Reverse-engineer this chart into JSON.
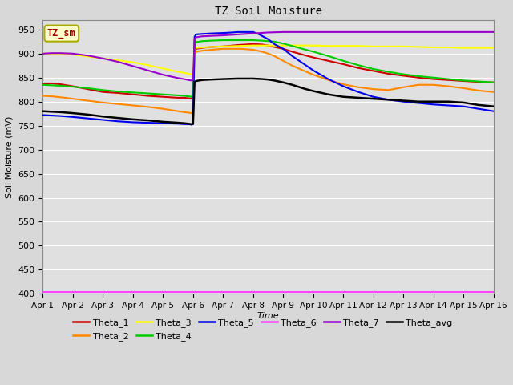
{
  "title": "TZ Soil Moisture",
  "xlabel": "Time",
  "ylabel": "Soil Moisture (mV)",
  "xlim": [
    0,
    15
  ],
  "ylim": [
    400,
    970
  ],
  "yticks": [
    400,
    450,
    500,
    550,
    600,
    650,
    700,
    750,
    800,
    850,
    900,
    950
  ],
  "xtick_labels": [
    "Apr 1",
    "Apr 2",
    "Apr 3",
    "Apr 4",
    "Apr 5",
    "Apr 6",
    "Apr 7",
    "Apr 8",
    "Apr 9",
    "Apr 10",
    "Apr 11",
    "Apr 12",
    "Apr 13",
    "Apr 14",
    "Apr 15",
    "Apr 16"
  ],
  "background_color": "#d8d8d8",
  "plot_bg_color": "#e0e0e0",
  "grid_color": "#ffffff",
  "annotation_text": "TZ_sm",
  "annotation_bg": "#ffffcc",
  "annotation_border": "#aaaa00",
  "annotation_color": "#990000",
  "legend_order": [
    "Theta_1",
    "Theta_2",
    "Theta_3",
    "Theta_4",
    "Theta_5",
    "Theta_6",
    "Theta_7",
    "Theta_avg"
  ],
  "series": {
    "Theta_1": {
      "color": "#cc0000",
      "linewidth": 1.5,
      "points": [
        [
          0,
          838
        ],
        [
          0.3,
          838
        ],
        [
          0.6,
          836
        ],
        [
          1,
          832
        ],
        [
          1.5,
          826
        ],
        [
          2,
          820
        ],
        [
          2.5,
          818
        ],
        [
          3,
          815
        ],
        [
          3.5,
          812
        ],
        [
          4,
          810
        ],
        [
          4.5,
          808
        ],
        [
          4.7,
          808
        ],
        [
          4.85,
          807
        ],
        [
          4.95,
          806
        ],
        [
          5.0,
          808
        ],
        [
          5.05,
          905
        ],
        [
          5.1,
          910
        ],
        [
          5.3,
          912
        ],
        [
          5.6,
          914
        ],
        [
          6.0,
          915
        ],
        [
          6.5,
          918
        ],
        [
          7.0,
          920
        ],
        [
          7.3,
          919
        ],
        [
          7.5,
          917
        ],
        [
          7.7,
          914
        ],
        [
          8.0,
          910
        ],
        [
          8.3,
          904
        ],
        [
          8.7,
          897
        ],
        [
          9.0,
          892
        ],
        [
          9.5,
          885
        ],
        [
          10.0,
          878
        ],
        [
          10.5,
          870
        ],
        [
          11.0,
          864
        ],
        [
          11.5,
          858
        ],
        [
          12.0,
          854
        ],
        [
          12.5,
          850
        ],
        [
          13.0,
          847
        ],
        [
          13.5,
          845
        ],
        [
          14.0,
          843
        ],
        [
          14.5,
          841
        ],
        [
          15.0,
          840
        ]
      ]
    },
    "Theta_2": {
      "color": "#ff8800",
      "linewidth": 1.5,
      "points": [
        [
          0,
          812
        ],
        [
          0.3,
          811
        ],
        [
          0.6,
          809
        ],
        [
          1,
          806
        ],
        [
          1.5,
          802
        ],
        [
          2,
          798
        ],
        [
          2.5,
          795
        ],
        [
          3,
          792
        ],
        [
          3.5,
          789
        ],
        [
          4,
          785
        ],
        [
          4.5,
          780
        ],
        [
          4.7,
          778
        ],
        [
          4.85,
          777
        ],
        [
          4.95,
          776
        ],
        [
          5.0,
          777
        ],
        [
          5.05,
          900
        ],
        [
          5.1,
          904
        ],
        [
          5.3,
          906
        ],
        [
          5.6,
          908
        ],
        [
          6.0,
          910
        ],
        [
          6.3,
          910
        ],
        [
          6.6,
          910
        ],
        [
          7.0,
          908
        ],
        [
          7.3,
          904
        ],
        [
          7.5,
          900
        ],
        [
          7.7,
          895
        ],
        [
          8.0,
          885
        ],
        [
          8.3,
          875
        ],
        [
          8.7,
          864
        ],
        [
          9.0,
          856
        ],
        [
          9.5,
          845
        ],
        [
          10.0,
          836
        ],
        [
          10.5,
          830
        ],
        [
          11.0,
          826
        ],
        [
          11.5,
          824
        ],
        [
          12.0,
          830
        ],
        [
          12.5,
          835
        ],
        [
          13.0,
          835
        ],
        [
          13.5,
          832
        ],
        [
          14.0,
          828
        ],
        [
          14.5,
          823
        ],
        [
          15.0,
          820
        ]
      ]
    },
    "Theta_3": {
      "color": "#ffff00",
      "linewidth": 1.5,
      "points": [
        [
          0,
          900
        ],
        [
          0.3,
          900
        ],
        [
          0.6,
          900
        ],
        [
          1,
          898
        ],
        [
          1.5,
          894
        ],
        [
          2,
          890
        ],
        [
          2.5,
          886
        ],
        [
          3,
          882
        ],
        [
          3.5,
          876
        ],
        [
          4,
          869
        ],
        [
          4.5,
          862
        ],
        [
          4.7,
          860
        ],
        [
          4.85,
          858
        ],
        [
          4.95,
          857
        ],
        [
          5.0,
          858
        ],
        [
          5.05,
          908
        ],
        [
          5.1,
          912
        ],
        [
          5.3,
          913
        ],
        [
          5.6,
          914
        ],
        [
          6.0,
          915
        ],
        [
          6.5,
          916
        ],
        [
          7.0,
          917
        ],
        [
          7.5,
          917
        ],
        [
          8.0,
          917
        ],
        [
          8.5,
          917
        ],
        [
          9.0,
          917
        ],
        [
          9.5,
          916
        ],
        [
          10.0,
          916
        ],
        [
          10.5,
          916
        ],
        [
          11.0,
          915
        ],
        [
          11.5,
          915
        ],
        [
          12.0,
          915
        ],
        [
          12.5,
          914
        ],
        [
          13.0,
          913
        ],
        [
          13.5,
          913
        ],
        [
          14.0,
          912
        ],
        [
          14.5,
          912
        ],
        [
          15.0,
          912
        ]
      ]
    },
    "Theta_4": {
      "color": "#00cc00",
      "linewidth": 1.5,
      "points": [
        [
          0,
          835
        ],
        [
          0.3,
          834
        ],
        [
          0.6,
          833
        ],
        [
          1,
          831
        ],
        [
          1.5,
          828
        ],
        [
          2,
          824
        ],
        [
          2.5,
          821
        ],
        [
          3,
          819
        ],
        [
          3.5,
          817
        ],
        [
          4,
          815
        ],
        [
          4.5,
          813
        ],
        [
          4.7,
          812
        ],
        [
          4.85,
          811
        ],
        [
          4.95,
          810
        ],
        [
          5.0,
          811
        ],
        [
          5.05,
          920
        ],
        [
          5.1,
          924
        ],
        [
          5.3,
          926
        ],
        [
          5.6,
          927
        ],
        [
          6.0,
          928
        ],
        [
          6.5,
          928
        ],
        [
          7.0,
          928
        ],
        [
          7.3,
          927
        ],
        [
          7.5,
          926
        ],
        [
          7.7,
          925
        ],
        [
          8.0,
          921
        ],
        [
          8.3,
          916
        ],
        [
          8.7,
          909
        ],
        [
          9.0,
          904
        ],
        [
          9.5,
          895
        ],
        [
          10.0,
          885
        ],
        [
          10.5,
          876
        ],
        [
          11.0,
          868
        ],
        [
          11.5,
          862
        ],
        [
          12.0,
          857
        ],
        [
          12.5,
          853
        ],
        [
          13.0,
          850
        ],
        [
          13.5,
          847
        ],
        [
          14.0,
          844
        ],
        [
          14.5,
          842
        ],
        [
          15.0,
          840
        ]
      ]
    },
    "Theta_5": {
      "color": "#0000ee",
      "linewidth": 1.5,
      "points": [
        [
          0,
          772
        ],
        [
          0.3,
          771
        ],
        [
          0.6,
          770
        ],
        [
          1,
          768
        ],
        [
          1.5,
          765
        ],
        [
          2,
          762
        ],
        [
          2.5,
          759
        ],
        [
          3,
          757
        ],
        [
          3.5,
          756
        ],
        [
          4,
          755
        ],
        [
          4.5,
          754
        ],
        [
          4.7,
          753
        ],
        [
          4.85,
          753
        ],
        [
          4.95,
          752
        ],
        [
          5.0,
          753
        ],
        [
          5.05,
          935
        ],
        [
          5.1,
          940
        ],
        [
          5.3,
          941
        ],
        [
          5.6,
          942
        ],
        [
          6.0,
          943
        ],
        [
          6.3,
          944
        ],
        [
          6.5,
          945
        ],
        [
          6.8,
          945
        ],
        [
          7.0,
          945
        ],
        [
          7.2,
          940
        ],
        [
          7.5,
          930
        ],
        [
          7.7,
          920
        ],
        [
          8.0,
          910
        ],
        [
          8.3,
          895
        ],
        [
          8.7,
          878
        ],
        [
          9.0,
          865
        ],
        [
          9.5,
          847
        ],
        [
          10.0,
          832
        ],
        [
          10.5,
          820
        ],
        [
          11.0,
          810
        ],
        [
          11.5,
          804
        ],
        [
          12.0,
          800
        ],
        [
          12.5,
          797
        ],
        [
          13.0,
          794
        ],
        [
          13.5,
          792
        ],
        [
          14.0,
          790
        ],
        [
          14.5,
          785
        ],
        [
          15.0,
          780
        ]
      ]
    },
    "Theta_6": {
      "color": "#ff44ff",
      "linewidth": 1.5,
      "points": [
        [
          0,
          403
        ],
        [
          1,
          403
        ],
        [
          2,
          403
        ],
        [
          3,
          403
        ],
        [
          4,
          403
        ],
        [
          5,
          403
        ],
        [
          6,
          403
        ],
        [
          7,
          403
        ],
        [
          8,
          403
        ],
        [
          9,
          403
        ],
        [
          10,
          403
        ],
        [
          11,
          403
        ],
        [
          12,
          403
        ],
        [
          13,
          403
        ],
        [
          14,
          403
        ],
        [
          15,
          403
        ]
      ]
    },
    "Theta_7": {
      "color": "#9900cc",
      "linewidth": 1.5,
      "points": [
        [
          0,
          900
        ],
        [
          0.3,
          901
        ],
        [
          0.6,
          901
        ],
        [
          1,
          900
        ],
        [
          1.5,
          896
        ],
        [
          2,
          890
        ],
        [
          2.5,
          883
        ],
        [
          3,
          874
        ],
        [
          3.5,
          865
        ],
        [
          4,
          856
        ],
        [
          4.5,
          849
        ],
        [
          4.7,
          847
        ],
        [
          4.85,
          845
        ],
        [
          4.95,
          844
        ],
        [
          5.0,
          845
        ],
        [
          5.05,
          930
        ],
        [
          5.1,
          934
        ],
        [
          5.3,
          936
        ],
        [
          5.6,
          937
        ],
        [
          6.0,
          938
        ],
        [
          6.5,
          940
        ],
        [
          7.0,
          942
        ],
        [
          7.5,
          944
        ],
        [
          8.0,
          945
        ],
        [
          8.5,
          945
        ],
        [
          9.0,
          945
        ],
        [
          9.5,
          945
        ],
        [
          10.0,
          945
        ],
        [
          10.5,
          945
        ],
        [
          11.0,
          945
        ],
        [
          11.5,
          945
        ],
        [
          12.0,
          945
        ],
        [
          12.5,
          945
        ],
        [
          13.0,
          945
        ],
        [
          13.5,
          945
        ],
        [
          14.0,
          945
        ],
        [
          14.5,
          945
        ],
        [
          15.0,
          945
        ]
      ]
    },
    "Theta_avg": {
      "color": "#000000",
      "linewidth": 1.8,
      "points": [
        [
          0,
          780
        ],
        [
          0.3,
          779
        ],
        [
          0.6,
          778
        ],
        [
          1,
          776
        ],
        [
          1.5,
          773
        ],
        [
          2,
          769
        ],
        [
          2.5,
          766
        ],
        [
          3,
          763
        ],
        [
          3.5,
          761
        ],
        [
          4,
          758
        ],
        [
          4.5,
          756
        ],
        [
          4.7,
          755
        ],
        [
          4.85,
          754
        ],
        [
          4.95,
          753
        ],
        [
          5.0,
          754
        ],
        [
          5.05,
          840
        ],
        [
          5.1,
          843
        ],
        [
          5.3,
          845
        ],
        [
          5.6,
          846
        ],
        [
          6.0,
          847
        ],
        [
          6.5,
          848
        ],
        [
          7.0,
          848
        ],
        [
          7.3,
          847
        ],
        [
          7.5,
          846
        ],
        [
          7.7,
          844
        ],
        [
          8.0,
          840
        ],
        [
          8.3,
          835
        ],
        [
          8.7,
          827
        ],
        [
          9.0,
          822
        ],
        [
          9.5,
          815
        ],
        [
          10.0,
          810
        ],
        [
          10.5,
          808
        ],
        [
          11.0,
          806
        ],
        [
          11.5,
          804
        ],
        [
          12.0,
          802
        ],
        [
          12.5,
          800
        ],
        [
          13.0,
          800
        ],
        [
          13.5,
          800
        ],
        [
          14.0,
          798
        ],
        [
          14.5,
          793
        ],
        [
          15.0,
          790
        ]
      ]
    }
  }
}
